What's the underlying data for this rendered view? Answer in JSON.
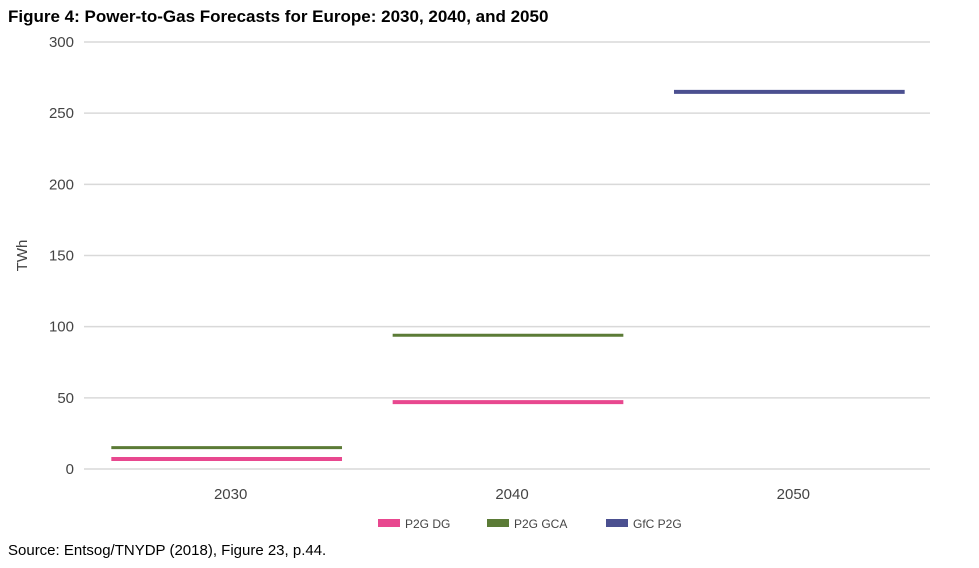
{
  "title": "Figure 4: Power-to-Gas Forecasts for Europe: 2030, 2040, and 2050",
  "source": "Source: Entsog/TNYDP (2018), Figure 23, p.44.",
  "chart_data": {
    "type": "line",
    "style": "horizontal level markers per category",
    "categories": [
      "2030",
      "2040",
      "2050"
    ],
    "ylabel": "TWh",
    "xlabel": "",
    "ylim": [
      0,
      300
    ],
    "yticks": [
      0,
      50,
      100,
      150,
      200,
      250,
      300
    ],
    "grid": true,
    "legend": "bottom",
    "series": [
      {
        "name": "P2G DG",
        "color": "#e8488f",
        "values": [
          7,
          47,
          null
        ]
      },
      {
        "name": "P2G GCA",
        "color": "#5b7b36",
        "values": [
          15,
          94,
          null
        ]
      },
      {
        "name": "GfC P2G",
        "color": "#4b5090",
        "values": [
          null,
          null,
          265
        ]
      }
    ]
  }
}
